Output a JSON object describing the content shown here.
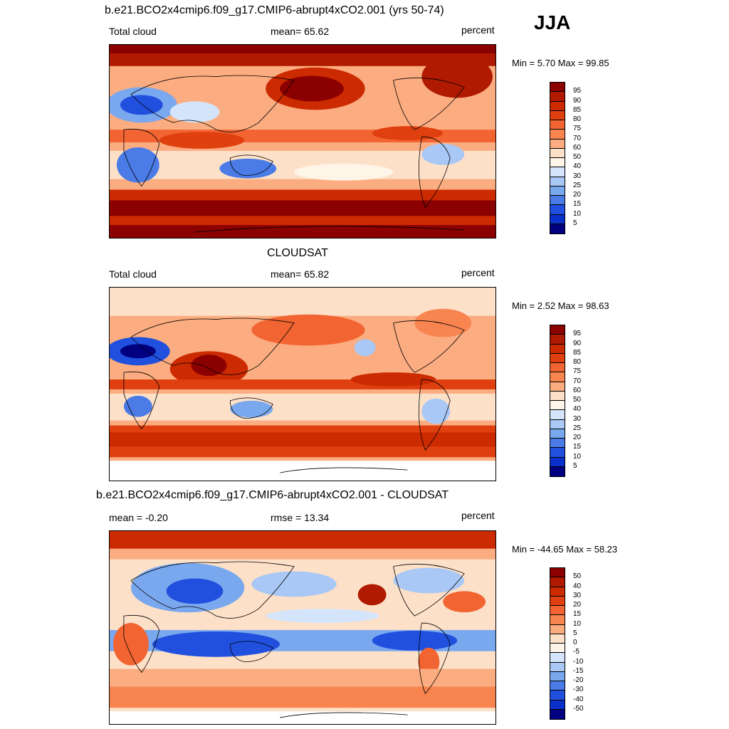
{
  "season": "JJA",
  "panels": [
    {
      "title": "b.e21.BCO2x4cmip6.f09_g17.CMIP6-abrupt4xCO2.001 (yrs 50-74)",
      "left_label": "Total cloud",
      "center_label": "mean=  65.62",
      "units": "percent",
      "range_label": "Min =   5.70 Max =  99.85",
      "colorbar": {
        "labels": [
          "95",
          "90",
          "85",
          "80",
          "75",
          "70",
          "60",
          "50",
          "40",
          "30",
          "25",
          "20",
          "15",
          "10",
          "5"
        ],
        "colors": [
          "#8b0000",
          "#b01a00",
          "#cc2a00",
          "#e04010",
          "#f26533",
          "#f8854f",
          "#fbac80",
          "#fde0c8",
          "#fff4e8",
          "#d4e5fb",
          "#a9c8f5",
          "#7aa8ef",
          "#4a7be6",
          "#2050dd",
          "#0a30cc",
          "#000080"
        ]
      }
    },
    {
      "title": "CLOUDSAT",
      "left_label": "Total cloud",
      "center_label": "mean=  65.82",
      "units": "percent",
      "range_label": "Min =   2.52 Max =  98.63",
      "colorbar": {
        "labels": [
          "95",
          "90",
          "85",
          "80",
          "75",
          "70",
          "60",
          "50",
          "40",
          "30",
          "25",
          "20",
          "15",
          "10",
          "5"
        ],
        "colors": [
          "#8b0000",
          "#b01a00",
          "#cc2a00",
          "#e04010",
          "#f26533",
          "#f8854f",
          "#fbac80",
          "#fde0c8",
          "#fff4e8",
          "#d4e5fb",
          "#a9c8f5",
          "#7aa8ef",
          "#4a7be6",
          "#2050dd",
          "#0a30cc",
          "#000080"
        ]
      }
    },
    {
      "title": "b.e21.BCO2x4cmip6.f09_g17.CMIP6-abrupt4xCO2.001 - CLOUDSAT",
      "left_label": "mean =  -0.20",
      "center_label": "rmse =  13.34",
      "units": "percent",
      "range_label": "Min = -44.65 Max =  58.23",
      "colorbar": {
        "labels": [
          "50",
          "40",
          "30",
          "20",
          "15",
          "10",
          "5",
          "0",
          "-5",
          "-10",
          "-15",
          "-20",
          "-30",
          "-40",
          "-50"
        ],
        "colors": [
          "#8b0000",
          "#b01a00",
          "#cc2a00",
          "#e04010",
          "#f26533",
          "#f8854f",
          "#fbac80",
          "#fde0c8",
          "#fff4e8",
          "#d4e5fb",
          "#a9c8f5",
          "#7aa8ef",
          "#4a7be6",
          "#2050dd",
          "#0a30cc",
          "#000080"
        ]
      }
    }
  ]
}
